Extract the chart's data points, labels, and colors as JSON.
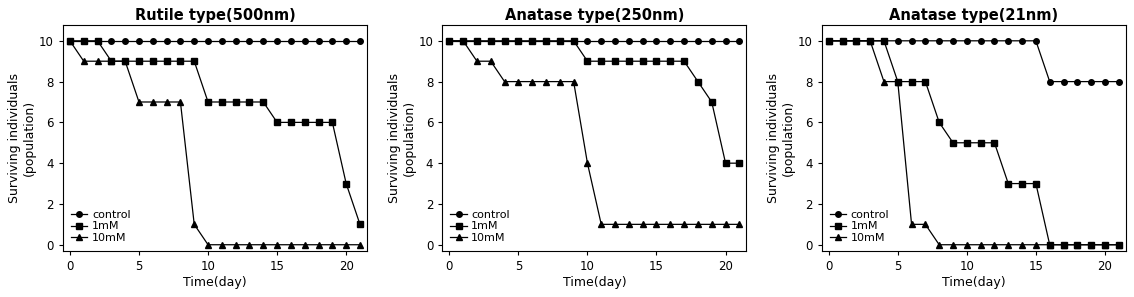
{
  "charts": [
    {
      "title": "Rutile type(500nm)",
      "control_x": [
        0,
        1,
        2,
        3,
        4,
        5,
        6,
        7,
        8,
        9,
        10,
        11,
        12,
        13,
        14,
        15,
        16,
        17,
        18,
        19,
        20,
        21
      ],
      "control_y": [
        10,
        10,
        10,
        10,
        10,
        10,
        10,
        10,
        10,
        10,
        10,
        10,
        10,
        10,
        10,
        10,
        10,
        10,
        10,
        10,
        10,
        10
      ],
      "mM1_x": [
        0,
        1,
        2,
        3,
        4,
        5,
        6,
        7,
        8,
        9,
        10,
        11,
        12,
        13,
        14,
        15,
        16,
        17,
        18,
        19,
        20,
        21
      ],
      "mM1_y": [
        10,
        10,
        10,
        9,
        9,
        9,
        9,
        9,
        9,
        9,
        7,
        7,
        7,
        7,
        7,
        6,
        6,
        6,
        6,
        6,
        3,
        1
      ],
      "mM10_x": [
        0,
        1,
        2,
        3,
        4,
        5,
        6,
        7,
        8,
        9,
        10,
        11,
        12,
        13,
        14,
        15,
        16,
        17,
        18,
        19,
        20,
        21
      ],
      "mM10_y": [
        10,
        9,
        9,
        9,
        9,
        7,
        7,
        7,
        7,
        1,
        0,
        0,
        0,
        0,
        0,
        0,
        0,
        0,
        0,
        0,
        0,
        0
      ]
    },
    {
      "title": "Anatase type(250nm)",
      "control_x": [
        0,
        1,
        2,
        3,
        4,
        5,
        6,
        7,
        8,
        9,
        10,
        11,
        12,
        13,
        14,
        15,
        16,
        17,
        18,
        19,
        20,
        21
      ],
      "control_y": [
        10,
        10,
        10,
        10,
        10,
        10,
        10,
        10,
        10,
        10,
        10,
        10,
        10,
        10,
        10,
        10,
        10,
        10,
        10,
        10,
        10,
        10
      ],
      "mM1_x": [
        0,
        1,
        2,
        3,
        4,
        5,
        6,
        7,
        8,
        9,
        10,
        11,
        12,
        13,
        14,
        15,
        16,
        17,
        18,
        19,
        20,
        21
      ],
      "mM1_y": [
        10,
        10,
        10,
        10,
        10,
        10,
        10,
        10,
        10,
        10,
        9,
        9,
        9,
        9,
        9,
        9,
        9,
        9,
        8,
        7,
        4,
        4
      ],
      "mM10_x": [
        0,
        1,
        2,
        3,
        4,
        5,
        6,
        7,
        8,
        9,
        10,
        11,
        12,
        13,
        14,
        15,
        16,
        17,
        18,
        19,
        20,
        21
      ],
      "mM10_y": [
        10,
        10,
        9,
        9,
        8,
        8,
        8,
        8,
        8,
        8,
        4,
        1,
        1,
        1,
        1,
        1,
        1,
        1,
        1,
        1,
        1,
        1
      ]
    },
    {
      "title": "Anatase type(21nm)",
      "control_x": [
        0,
        1,
        2,
        3,
        4,
        5,
        6,
        7,
        8,
        9,
        10,
        11,
        12,
        13,
        14,
        15,
        16,
        17,
        18,
        19,
        20,
        21
      ],
      "control_y": [
        10,
        10,
        10,
        10,
        10,
        10,
        10,
        10,
        10,
        10,
        10,
        10,
        10,
        10,
        10,
        10,
        8,
        8,
        8,
        8,
        8,
        8
      ],
      "mM1_x": [
        0,
        1,
        2,
        3,
        4,
        5,
        6,
        7,
        8,
        9,
        10,
        11,
        12,
        13,
        14,
        15,
        16,
        17,
        18,
        19,
        20,
        21
      ],
      "mM1_y": [
        10,
        10,
        10,
        10,
        10,
        8,
        8,
        8,
        6,
        5,
        5,
        5,
        5,
        3,
        3,
        3,
        0,
        0,
        0,
        0,
        0,
        0
      ],
      "mM10_x": [
        0,
        1,
        2,
        3,
        4,
        5,
        6,
        7,
        8,
        9,
        10,
        11,
        12,
        13,
        14,
        15,
        16,
        17,
        18,
        19,
        20,
        21
      ],
      "mM10_y": [
        10,
        10,
        10,
        10,
        8,
        8,
        1,
        1,
        0,
        0,
        0,
        0,
        0,
        0,
        0,
        0,
        0,
        0,
        0,
        0,
        0,
        0
      ]
    }
  ],
  "ylabel": "Surviving individuals\n(population)",
  "xlabel": "Time(day)",
  "legend_labels": [
    "control",
    "1mM",
    "10mM"
  ],
  "ylim": [
    -0.3,
    10.8
  ],
  "xlim": [
    -0.5,
    21.5
  ],
  "yticks": [
    0,
    2,
    4,
    6,
    8,
    10
  ],
  "xticks": [
    0,
    5,
    10,
    15,
    20
  ],
  "line_color": "#000000",
  "bg_color": "#ffffff",
  "title_fontsize": 10.5,
  "label_fontsize": 9,
  "tick_fontsize": 8.5,
  "legend_fontsize": 8,
  "marker_size": 4,
  "linewidth": 0.9
}
